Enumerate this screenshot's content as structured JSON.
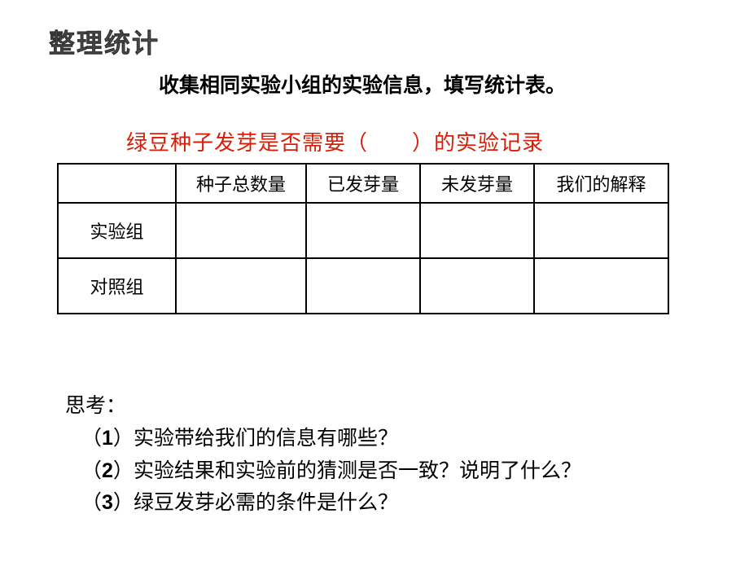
{
  "page": {
    "title": "整理统计",
    "subtitle": "收集相同实验小组的实验信息，填写统计表。"
  },
  "table": {
    "title": "绿豆种子发芽是否需要（　　）的实验记录",
    "title_color": "#d81e06",
    "columns": [
      "",
      "种子总数量",
      "已发芽量",
      "未发芽量",
      "我们的解释"
    ],
    "rows": [
      {
        "label": "实验组",
        "cells": [
          "",
          "",
          "",
          ""
        ]
      },
      {
        "label": "对照组",
        "cells": [
          "",
          "",
          "",
          ""
        ]
      }
    ]
  },
  "think": {
    "label": "思考：",
    "questions": [
      {
        "num": "1",
        "text": "实验带给我们的信息有哪些？"
      },
      {
        "num": "2",
        "text": "实验结果和实验前的猜测是否一致？说明了什么？"
      },
      {
        "num": "3",
        "text": "绿豆发芽必需的条件是什么？"
      }
    ]
  },
  "styling": {
    "page_bg": "#ffffff",
    "text_color": "#000000",
    "title_color": "#5a5a5a",
    "border_color": "#000000",
    "title_fontsize": 32,
    "body_fontsize": 25,
    "table_fontsize": 22
  }
}
